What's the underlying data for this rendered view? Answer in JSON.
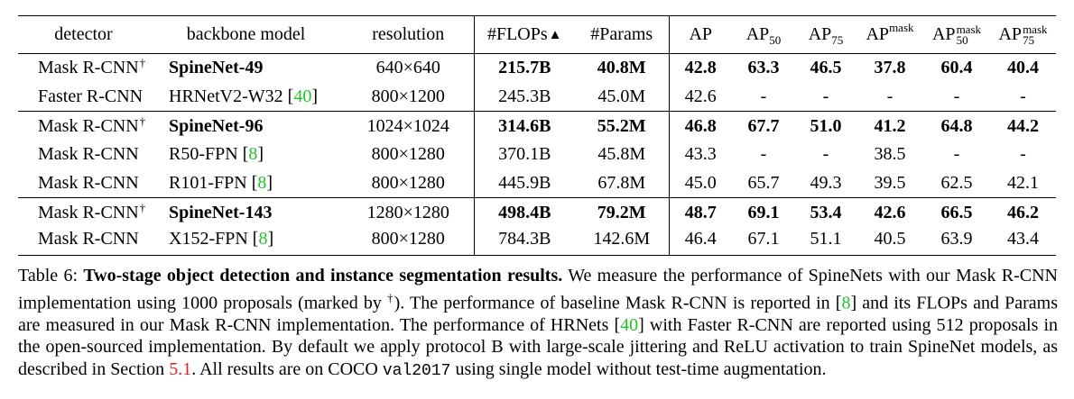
{
  "table": {
    "headers": {
      "detector": "detector",
      "backbone": "backbone model",
      "resolution": "resolution",
      "flops": "#FLOPs",
      "flops_marker": "▲",
      "params": "#Params",
      "ap": "AP",
      "ap50_sub": "50",
      "ap75_sub": "75",
      "mask": "mask",
      "sub50": "50",
      "sub75": "75"
    },
    "dagger": "†",
    "rows": [
      {
        "detector": "Mask R-CNN",
        "dagger": true,
        "backbone": "SpineNet-49",
        "cite": "",
        "resolution": "640×640",
        "flops": "215.7B",
        "params": "40.8M",
        "ap": "42.8",
        "ap50": "63.3",
        "ap75": "46.5",
        "apm": "37.8",
        "apm50": "60.4",
        "apm75": "40.4",
        "bold": true,
        "group_start": false
      },
      {
        "detector": "Faster R-CNN",
        "dagger": false,
        "backbone": "HRNetV2-W32",
        "cite": "40",
        "resolution": "800×1200",
        "flops": "245.3B",
        "params": "45.0M",
        "ap": "42.6",
        "ap50": "-",
        "ap75": "-",
        "apm": "-",
        "apm50": "-",
        "apm75": "-",
        "bold": false,
        "group_start": false
      },
      {
        "detector": "Mask R-CNN",
        "dagger": true,
        "backbone": "SpineNet-96",
        "cite": "",
        "resolution": "1024×1024",
        "flops": "314.6B",
        "params": "55.2M",
        "ap": "46.8",
        "ap50": "67.7",
        "ap75": "51.0",
        "apm": "41.2",
        "apm50": "64.8",
        "apm75": "44.2",
        "bold": true,
        "group_start": true
      },
      {
        "detector": "Mask R-CNN",
        "dagger": false,
        "backbone": "R50-FPN",
        "cite": "8",
        "resolution": "800×1280",
        "flops": "370.1B",
        "params": "45.8M",
        "ap": "43.3",
        "ap50": "-",
        "ap75": "-",
        "apm": "38.5",
        "apm50": "-",
        "apm75": "-",
        "bold": false,
        "group_start": false
      },
      {
        "detector": "Mask R-CNN",
        "dagger": false,
        "backbone": "R101-FPN",
        "cite": "8",
        "resolution": "800×1280",
        "flops": "445.9B",
        "params": "67.8M",
        "ap": "45.0",
        "ap50": "65.7",
        "ap75": "49.3",
        "apm": "39.5",
        "apm50": "62.5",
        "apm75": "42.1",
        "bold": false,
        "group_start": false
      },
      {
        "detector": "Mask R-CNN",
        "dagger": true,
        "backbone": "SpineNet-143",
        "cite": "",
        "resolution": "1280×1280",
        "flops": "498.4B",
        "params": "79.2M",
        "ap": "48.7",
        "ap50": "69.1",
        "ap75": "53.4",
        "apm": "42.6",
        "apm50": "66.5",
        "apm75": "46.2",
        "bold": true,
        "group_start": true
      },
      {
        "detector": "Mask R-CNN",
        "dagger": false,
        "backbone": "X152-FPN",
        "cite": "8",
        "resolution": "800×1280",
        "flops": "784.3B",
        "params": "142.6M",
        "ap": "46.4",
        "ap50": "67.1",
        "ap75": "51.1",
        "apm": "40.5",
        "apm50": "63.9",
        "apm75": "43.4",
        "bold": false,
        "group_start": false
      }
    ]
  },
  "caption": {
    "label": "Table 6:",
    "title": "Two-stage object detection and instance segmentation results.",
    "t1": " We measure the performance of SpineNets with our Mask R-CNN implementation using 1000 proposals (marked by ",
    "dagger": "†",
    "t2": "). The performance of baseline Mask R-CNN is reported in [",
    "cite1": "8",
    "t3": "] and its FLOPs and Params are measured in our Mask R-CNN implementation. The performance of HRNets [",
    "cite2": "40",
    "t4": "] with Faster R-CNN are reported using 512 proposals in the open-sourced implementation. By default we apply protocol B with large-scale jittering and ReLU activation to train SpineNet models, as described in Section ",
    "section_ref": "5.1",
    "t5": ". All results are on COCO ",
    "code": "val2017",
    "t6": " using single model without test-time augmentation."
  },
  "colors": {
    "cite": "#22c42a",
    "section_ref": "#e02020"
  }
}
